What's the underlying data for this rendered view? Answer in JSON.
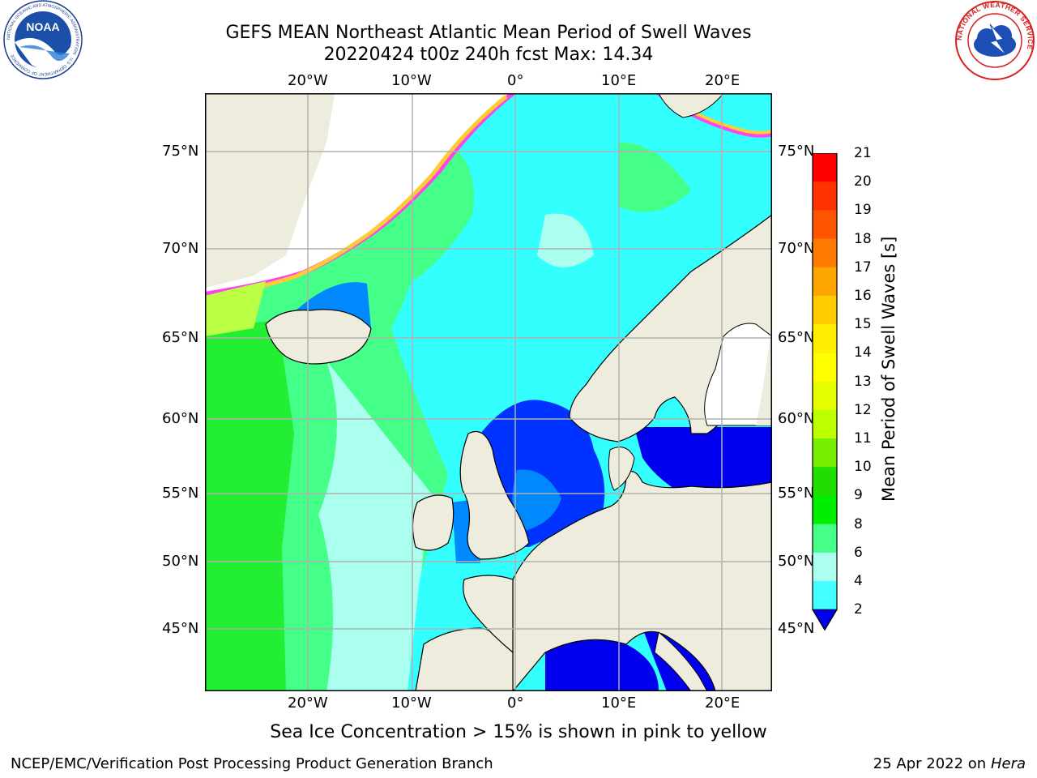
{
  "title": {
    "line1": "GEFS MEAN Northeast Atlantic Mean Period of Swell Waves",
    "line2": "20220424 t00z 240h fcst   Max: 14.34"
  },
  "axes": {
    "lon_labels": [
      "20°W",
      "10°W",
      "0°",
      "10°E",
      "20°E"
    ],
    "lat_labels": [
      "75°N",
      "70°N",
      "65°N",
      "60°N",
      "55°N",
      "50°N",
      "45°N"
    ]
  },
  "colorbar": {
    "label": "Mean Period of Swell Waves [s]",
    "ticks": [
      "21",
      "20",
      "19",
      "18",
      "17",
      "16",
      "15",
      "14",
      "13",
      "12",
      "11",
      "10",
      "9",
      "8",
      "6",
      "4",
      "2"
    ],
    "colors": [
      "#ff0000",
      "#ff3300",
      "#ff5500",
      "#ff7b00",
      "#ffa500",
      "#ffcc00",
      "#ffee00",
      "#ffff00",
      "#e6ff00",
      "#bbff00",
      "#77ee00",
      "#22dd00",
      "#00ee00",
      "#44ff88",
      "#aaffee",
      "#44ffff",
      "#00eeff",
      "#0088ff",
      "#0033ff"
    ]
  },
  "note": "Sea Ice Concentration > 15% is shown in pink to yellow",
  "footer": {
    "left": "NCEP/EMC/Verification Post Processing Product Generation Branch",
    "right_prefix": "25 Apr 2022 on ",
    "right_host": "Hera"
  },
  "logos": {
    "left": "NOAA",
    "left_ring": "NATIONAL OCEANIC AND ATMOSPHERIC ADMINISTRATION · U.S. DEPARTMENT OF COMMERCE",
    "right_ring": "NATIONAL WEATHER SERVICE"
  },
  "colors": {
    "land": "#eeecdc",
    "ocean_cyan": "#33ffff",
    "ocean_green": "#44ff88",
    "deep_blue": "#0000ee",
    "grid": "#b0b0b0"
  }
}
